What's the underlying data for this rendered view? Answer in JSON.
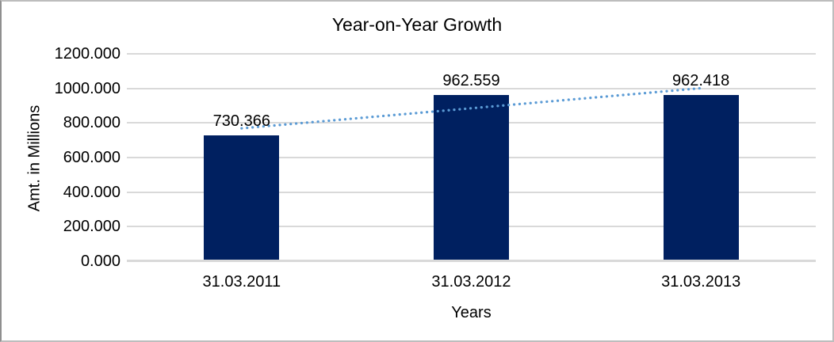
{
  "chart_data": {
    "type": "bar",
    "title": "Year-on-Year Growth",
    "xlabel": "Years",
    "ylabel": "Amt. in Millions",
    "categories": [
      "31.03.2011",
      "31.03.2012",
      "31.03.2013"
    ],
    "values": [
      730.366,
      962.559,
      962.418
    ],
    "data_labels": [
      "730.366",
      "962.559",
      "962.418"
    ],
    "ylim": [
      0,
      1200
    ],
    "ytick_interval": 200,
    "ytick_labels": [
      "0.000",
      "200.000",
      "400.000",
      "600.000",
      "800.000",
      "1000.000",
      "1200.000"
    ],
    "grid": true,
    "legend": "none",
    "trendline": {
      "type": "linear",
      "style": "dotted",
      "color": "#5b9bd5"
    },
    "colors": {
      "bar": "#002060",
      "gridline": "#d9d9d9",
      "text": "#000000",
      "background": "#ffffff",
      "frame_border": "#bdbdbd"
    }
  }
}
